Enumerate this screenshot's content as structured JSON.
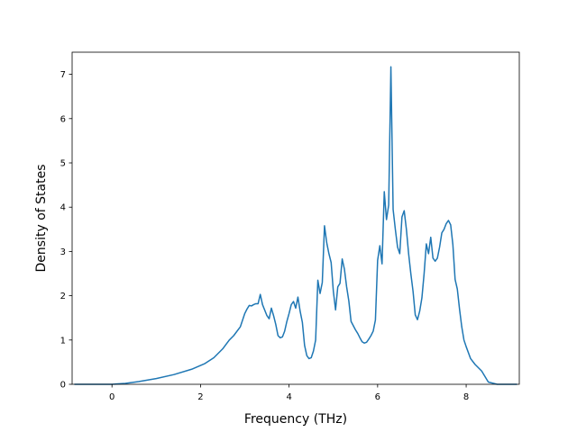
{
  "chart_data": {
    "type": "line",
    "title": "",
    "xlabel": "Frequency (THz)",
    "ylabel": "Density of States",
    "xlim": [
      -0.9,
      9.2
    ],
    "ylim": [
      0,
      7.5
    ],
    "xticks": [
      0,
      2,
      4,
      6,
      8
    ],
    "yticks": [
      0,
      1,
      2,
      3,
      4,
      5,
      6,
      7
    ],
    "grid": false,
    "line_color": "#1f77b4",
    "series": [
      {
        "name": "",
        "x": [
          -0.85,
          0.0,
          0.3,
          0.6,
          1.0,
          1.4,
          1.8,
          2.1,
          2.3,
          2.5,
          2.65,
          2.75,
          2.9,
          2.95,
          3.0,
          3.05,
          3.1,
          3.15,
          3.2,
          3.25,
          3.3,
          3.35,
          3.4,
          3.5,
          3.55,
          3.6,
          3.65,
          3.7,
          3.75,
          3.8,
          3.85,
          3.9,
          3.95,
          4.0,
          4.05,
          4.1,
          4.15,
          4.2,
          4.25,
          4.3,
          4.35,
          4.4,
          4.45,
          4.5,
          4.55,
          4.6,
          4.65,
          4.7,
          4.75,
          4.8,
          4.85,
          4.9,
          4.95,
          5.0,
          5.05,
          5.1,
          5.15,
          5.2,
          5.25,
          5.3,
          5.35,
          5.4,
          5.5,
          5.55,
          5.6,
          5.65,
          5.7,
          5.75,
          5.8,
          5.85,
          5.9,
          5.95,
          6.0,
          6.05,
          6.1,
          6.15,
          6.2,
          6.25,
          6.3,
          6.35,
          6.4,
          6.45,
          6.5,
          6.55,
          6.6,
          6.65,
          6.7,
          6.75,
          6.8,
          6.85,
          6.9,
          6.95,
          7.0,
          7.05,
          7.1,
          7.15,
          7.2,
          7.25,
          7.3,
          7.35,
          7.4,
          7.45,
          7.5,
          7.55,
          7.6,
          7.65,
          7.7,
          7.75,
          7.8,
          7.85,
          7.9,
          7.95,
          8.0,
          8.1,
          8.2,
          8.35,
          8.5,
          8.7,
          9.15
        ],
        "y": [
          0.0,
          0.0,
          0.02,
          0.06,
          0.13,
          0.22,
          0.34,
          0.47,
          0.6,
          0.8,
          1.0,
          1.1,
          1.3,
          1.45,
          1.6,
          1.7,
          1.78,
          1.77,
          1.8,
          1.82,
          1.82,
          2.03,
          1.8,
          1.55,
          1.48,
          1.72,
          1.55,
          1.35,
          1.1,
          1.05,
          1.07,
          1.2,
          1.42,
          1.6,
          1.8,
          1.87,
          1.72,
          1.97,
          1.65,
          1.4,
          0.88,
          0.65,
          0.58,
          0.6,
          0.75,
          1.0,
          2.35,
          2.05,
          2.3,
          3.58,
          3.2,
          2.95,
          2.75,
          2.1,
          1.68,
          2.2,
          2.28,
          2.83,
          2.6,
          2.2,
          1.88,
          1.42,
          1.23,
          1.15,
          1.05,
          0.96,
          0.93,
          0.95,
          1.02,
          1.1,
          1.2,
          1.45,
          2.8,
          3.13,
          2.72,
          4.35,
          3.72,
          4.05,
          7.17,
          3.95,
          3.5,
          3.1,
          2.95,
          3.78,
          3.92,
          3.5,
          2.95,
          2.5,
          2.1,
          1.57,
          1.46,
          1.65,
          1.95,
          2.5,
          3.17,
          2.95,
          3.32,
          2.85,
          2.78,
          2.85,
          3.1,
          3.42,
          3.5,
          3.63,
          3.7,
          3.6,
          3.15,
          2.37,
          2.15,
          1.7,
          1.3,
          1.0,
          0.85,
          0.58,
          0.45,
          0.3,
          0.05,
          0.0,
          0.0
        ]
      }
    ]
  }
}
